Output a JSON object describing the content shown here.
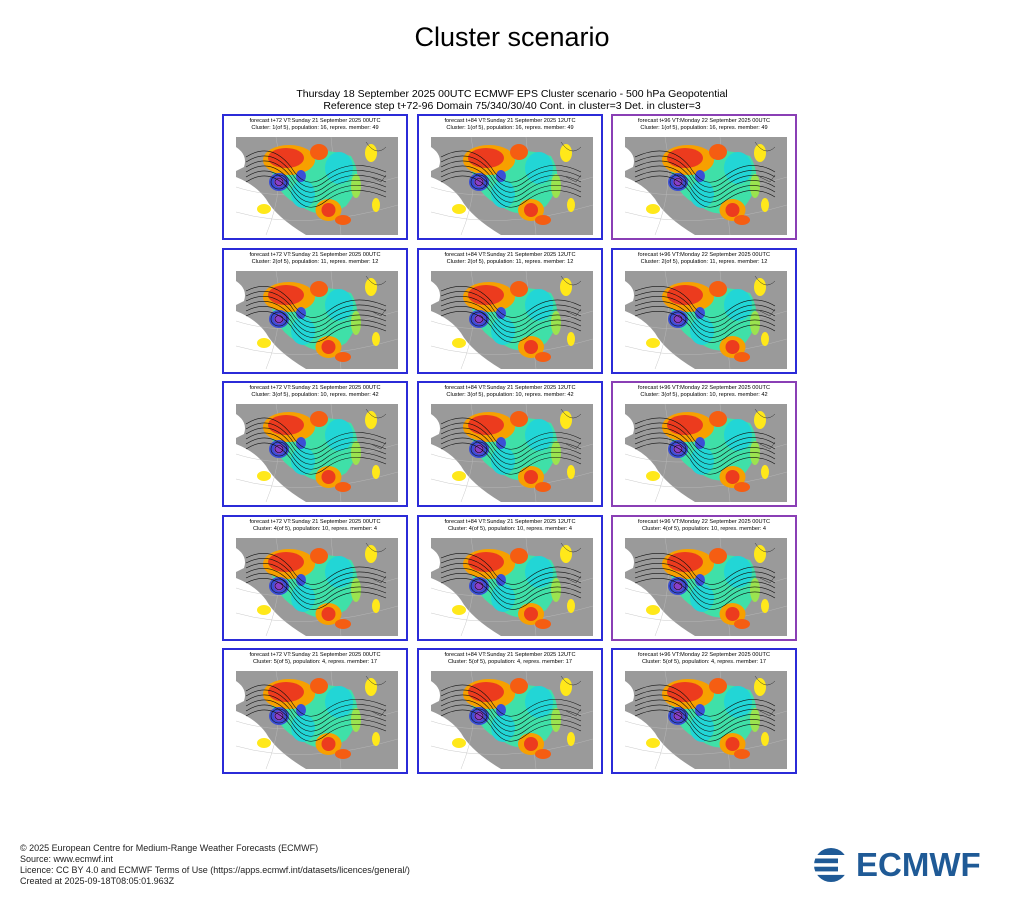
{
  "page_title": "Cluster scenario",
  "figure_header": {
    "line1": "Thursday 18 September 2025 00UTC ECMWF EPS Cluster scenario - 500 hPa Geopotential",
    "line2": "Reference step t+72-96 Domain 75/340/30/40 Cont. in cluster=3 Det. in cluster=3"
  },
  "colors": {
    "blue_frame": "#2b2bd8",
    "purple_frame": "#8a3fb5",
    "logo_blue": "#1f5a96"
  },
  "panels": [
    {
      "line1": "forecast t+72 VT:Sunday 21 September 2025 00UTC",
      "line2": "Cluster: 1(of 5), population: 16, repres. member: 49",
      "frame": "blue"
    },
    {
      "line1": "forecast t+84 VT:Sunday 21 September 2025 12UTC",
      "line2": "Cluster: 1(of 5), population: 16, repres. member: 49",
      "frame": "blue"
    },
    {
      "line1": "forecast t+96 VT:Monday 22 September 2025 00UTC",
      "line2": "Cluster: 1(of 5), population: 16, repres. member: 49",
      "frame": "purple"
    },
    {
      "line1": "forecast t+72 VT:Sunday 21 September 2025 00UTC",
      "line2": "Cluster: 2(of 5), population: 11, repres. member: 12",
      "frame": "blue"
    },
    {
      "line1": "forecast t+84 VT:Sunday 21 September 2025 12UTC",
      "line2": "Cluster: 2(of 5), population: 11, repres. member: 12",
      "frame": "blue"
    },
    {
      "line1": "forecast t+96 VT:Monday 22 September 2025 00UTC",
      "line2": "Cluster: 2(of 5), population: 11, repres. member: 12",
      "frame": "blue"
    },
    {
      "line1": "forecast t+72 VT:Sunday 21 September 2025 00UTC",
      "line2": "Cluster: 3(of 5), population: 10, repres. member: 42",
      "frame": "blue"
    },
    {
      "line1": "forecast t+84 VT:Sunday 21 September 2025 12UTC",
      "line2": "Cluster: 3(of 5), population: 10, repres. member: 42",
      "frame": "blue"
    },
    {
      "line1": "forecast t+96 VT:Monday 22 September 2025 00UTC",
      "line2": "Cluster: 3(of 5), population: 10, repres. member: 42",
      "frame": "purple"
    },
    {
      "line1": "forecast t+72 VT:Sunday 21 September 2025 00UTC",
      "line2": "Cluster: 4(of 5), population: 10, repres. member: 4",
      "frame": "blue"
    },
    {
      "line1": "forecast t+84 VT:Sunday 21 September 2025 12UTC",
      "line2": "Cluster: 4(of 5), population: 10, repres. member: 4",
      "frame": "blue"
    },
    {
      "line1": "forecast t+96 VT:Monday 22 September 2025 00UTC",
      "line2": "Cluster: 4(of 5), population: 10, repres. member: 4",
      "frame": "purple"
    },
    {
      "line1": "forecast t+72 VT:Sunday 21 September 2025 00UTC",
      "line2": "Cluster: 5(of 5), population: 4, repres. member: 17",
      "frame": "blue"
    },
    {
      "line1": "forecast t+84 VT:Sunday 21 September 2025 12UTC",
      "line2": "Cluster: 5(of 5), population: 4, repres. member: 17",
      "frame": "blue"
    },
    {
      "line1": "forecast t+96 VT:Monday 22 September 2025 00UTC",
      "line2": "Cluster: 5(of 5), population: 4, repres. member: 17",
      "frame": "blue"
    }
  ],
  "footer": {
    "copyright": "© 2025 European Centre for Medium-Range Weather Forecasts (ECMWF)",
    "source": "Source: www.ecmwf.int",
    "licence": "Licence: CC BY 4.0 and ECMWF Terms of Use (https://apps.ecmwf.int/datasets/licences/general/)",
    "created": "Created at 2025-09-18T08:05:01.963Z"
  },
  "logo": {
    "text": "ECMWF",
    "icon": "ecmwf-logo-icon"
  }
}
